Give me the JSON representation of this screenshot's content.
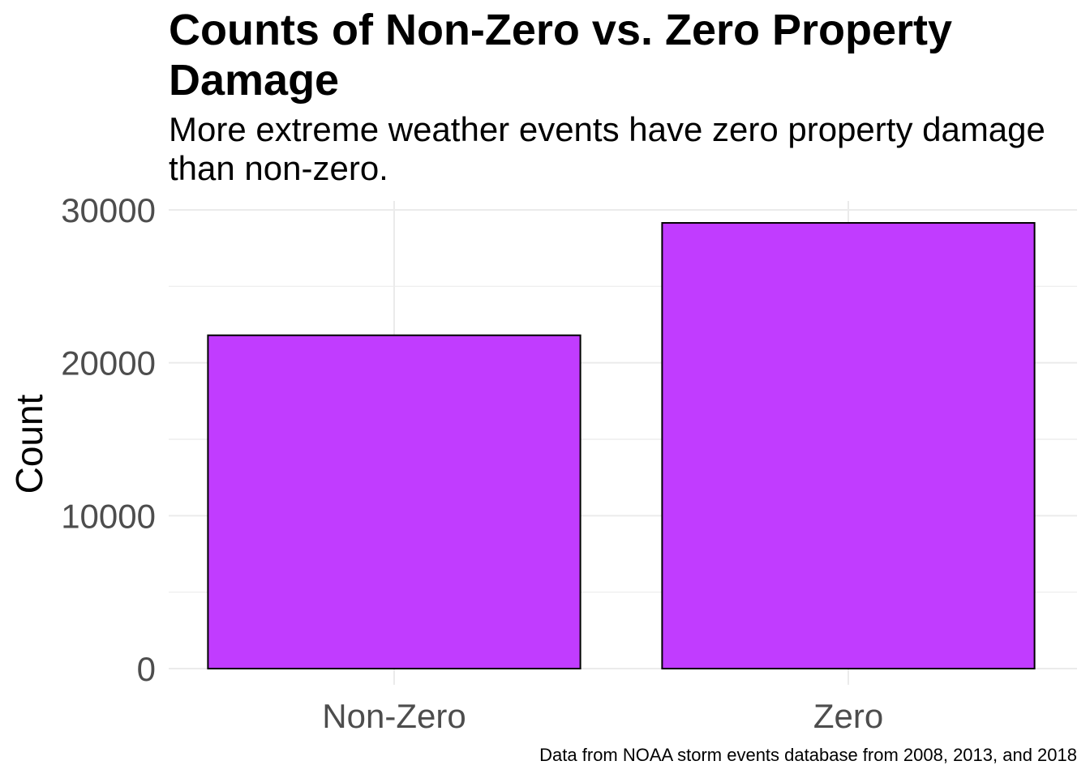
{
  "chart_data": {
    "type": "bar",
    "title": "Counts of Non-Zero vs. Zero Property Damage",
    "subtitle": "More extreme weather events have zero property damage than non-zero.",
    "caption": "Data from NOAA storm events database from 2008, 2013, and 2018",
    "xlabel": "",
    "ylabel": "Count",
    "categories": [
      "Non-Zero",
      "Zero"
    ],
    "values": [
      21800,
      29150
    ],
    "ylim": [
      0,
      30000
    ],
    "yticks": [
      "0",
      "10000",
      "20000",
      "30000"
    ],
    "grid": true,
    "legend": "none",
    "bar_fill": "#C13CFF",
    "bar_stroke": "#000000",
    "grid_color": "#EBEBEB"
  }
}
